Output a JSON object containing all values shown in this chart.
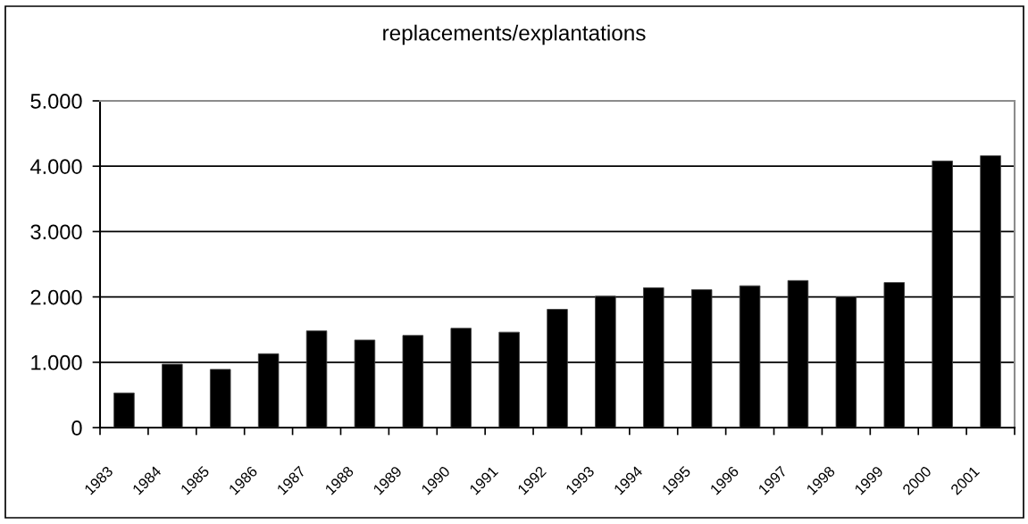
{
  "chart_data": {
    "type": "bar",
    "title": "replacements/explantations",
    "categories": [
      "1983",
      "1984",
      "1985",
      "1986",
      "1987",
      "1988",
      "1989",
      "1990",
      "1991",
      "1992",
      "1993",
      "1994",
      "1995",
      "1996",
      "1997",
      "1998",
      "1999",
      "2000",
      "2001"
    ],
    "values": [
      530,
      970,
      890,
      1130,
      1480,
      1340,
      1410,
      1520,
      1460,
      1810,
      2010,
      2140,
      2110,
      2170,
      2250,
      2000,
      2220,
      4080,
      4160
    ],
    "color": "#000000",
    "ylim": [
      0,
      5000
    ],
    "yticks": [
      0,
      {
        "value": 1000,
        "label": "1.000"
      },
      {
        "value": 2000,
        "label": "2.000"
      },
      {
        "value": 3000,
        "label": "3.000"
      },
      {
        "value": 4000,
        "label": "4.000"
      },
      {
        "value": 5000,
        "label": "5.000"
      }
    ],
    "grid": "y"
  }
}
